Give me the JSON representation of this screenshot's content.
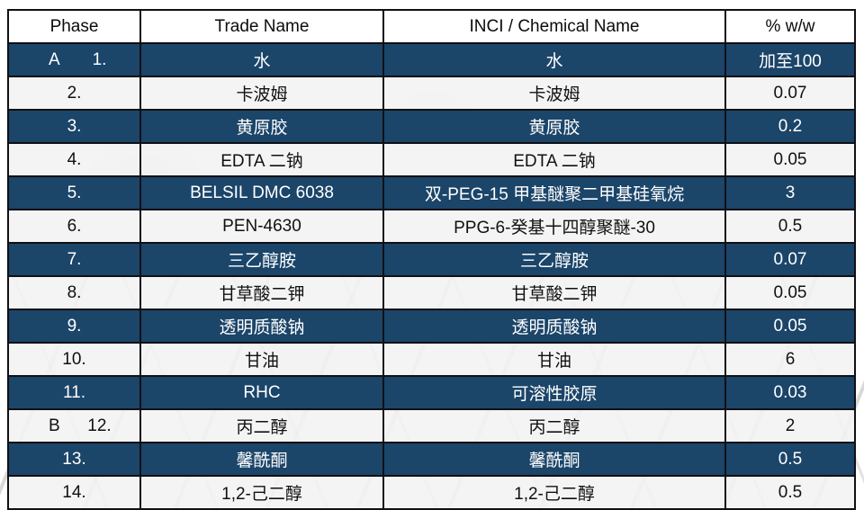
{
  "table": {
    "columns": {
      "phase": "Phase",
      "trade": "Trade Name",
      "inci": "INCI / Chemical Name",
      "pct": "% w/w"
    },
    "rows": [
      {
        "phase": "A",
        "num": "1.",
        "trade": "水",
        "inci": "水",
        "pct": "加至100"
      },
      {
        "phase": "",
        "num": "2.",
        "trade": "卡波姆",
        "inci": "卡波姆",
        "pct": "0.07"
      },
      {
        "phase": "",
        "num": "3.",
        "trade": "黄原胶",
        "inci": "黄原胶",
        "pct": "0.2"
      },
      {
        "phase": "",
        "num": "4.",
        "trade": "EDTA 二钠",
        "inci": "EDTA 二钠",
        "pct": "0.05"
      },
      {
        "phase": "",
        "num": "5.",
        "trade": "BELSIL DMC 6038",
        "inci": "双-PEG-15 甲基醚聚二甲基硅氧烷",
        "pct": "3"
      },
      {
        "phase": "",
        "num": "6.",
        "trade": "PEN-4630",
        "inci": "PPG-6-癸基十四醇聚醚-30",
        "pct": "0.5"
      },
      {
        "phase": "",
        "num": "7.",
        "trade": "三乙醇胺",
        "inci": "三乙醇胺",
        "pct": "0.07"
      },
      {
        "phase": "",
        "num": "8.",
        "trade": "甘草酸二钾",
        "inci": "甘草酸二钾",
        "pct": "0.05"
      },
      {
        "phase": "",
        "num": "9.",
        "trade": "透明质酸钠",
        "inci": "透明质酸钠",
        "pct": "0.05"
      },
      {
        "phase": "",
        "num": "10.",
        "trade": "甘油",
        "inci": "甘油",
        "pct": "6"
      },
      {
        "phase": "",
        "num": "11.",
        "trade": "RHC",
        "inci": "可溶性胶原",
        "pct": "0.03"
      },
      {
        "phase": "B",
        "num": "12.",
        "trade": "丙二醇",
        "inci": "丙二醇",
        "pct": "2"
      },
      {
        "phase": "",
        "num": "13.",
        "trade": "馨酰酮",
        "inci": "馨酰酮",
        "pct": "0.5"
      },
      {
        "phase": "",
        "num": "14.",
        "trade": "1,2-己二醇",
        "inci": "1,2-己二醇",
        "pct": "0.5"
      }
    ]
  },
  "colors": {
    "dark_row": "#1B4569",
    "light_row": "#F2F2F3",
    "border": "#101015",
    "dark_row_text": "#FFFFFF",
    "light_row_text": "#111111",
    "header_bg": "#FFFFFF"
  }
}
